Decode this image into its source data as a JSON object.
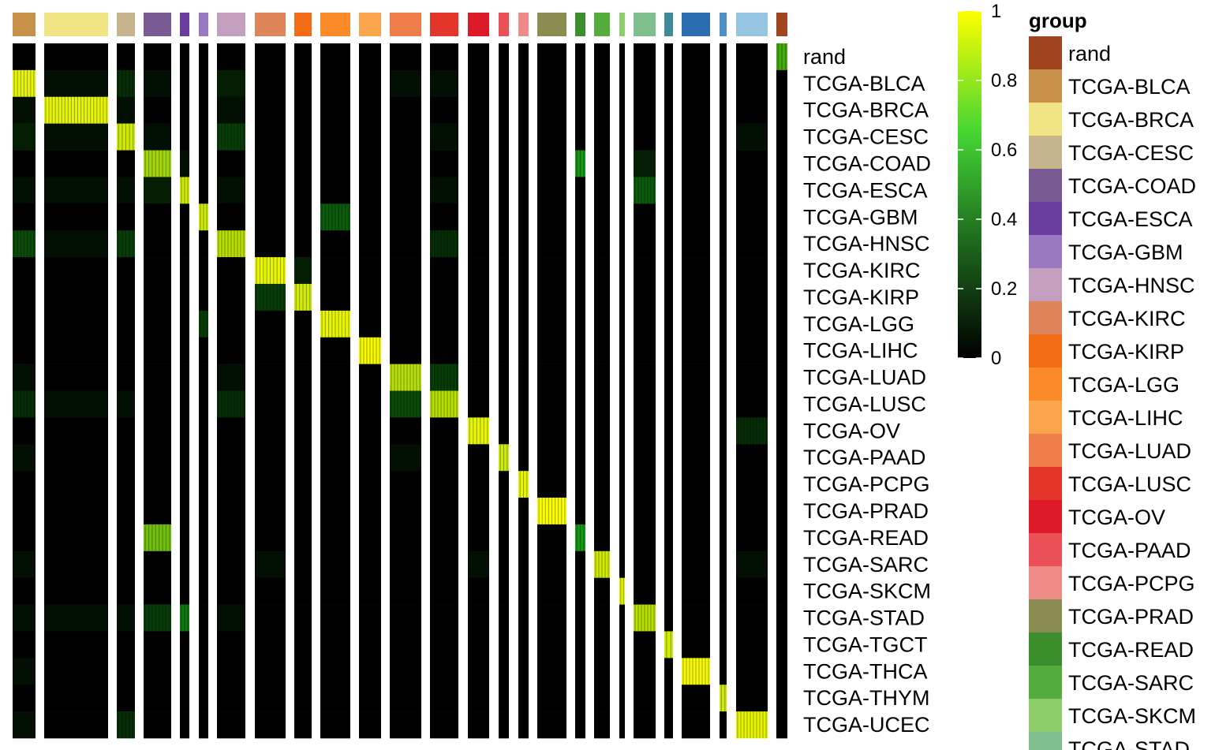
{
  "chart_data": {
    "type": "heatmap",
    "title": "",
    "xlabel": "",
    "ylabel": "",
    "rows": [
      "rand",
      "TCGA-BLCA",
      "TCGA-BRCA",
      "TCGA-CESC",
      "TCGA-COAD",
      "TCGA-ESCA",
      "TCGA-GBM",
      "TCGA-HNSC",
      "TCGA-KIRC",
      "TCGA-KIRP",
      "TCGA-LGG",
      "TCGA-LIHC",
      "TCGA-LUAD",
      "TCGA-LUSC",
      "TCGA-OV",
      "TCGA-PAAD",
      "TCGA-PCPG",
      "TCGA-PRAD",
      "TCGA-READ",
      "TCGA-SARC",
      "TCGA-SKCM",
      "TCGA-STAD",
      "TCGA-TGCT",
      "TCGA-THCA",
      "TCGA-THYM",
      "TCGA-UCEC"
    ],
    "column_groups": [
      "TCGA-BLCA",
      "TCGA-BRCA",
      "TCGA-CESC",
      "TCGA-COAD",
      "TCGA-ESCA",
      "TCGA-GBM",
      "TCGA-HNSC",
      "TCGA-KIRC",
      "TCGA-KIRP",
      "TCGA-LGG",
      "TCGA-LIHC",
      "TCGA-LUAD",
      "TCGA-LUSC",
      "TCGA-OV",
      "TCGA-PAAD",
      "TCGA-PCPG",
      "TCGA-PRAD",
      "TCGA-READ",
      "TCGA-SARC",
      "TCGA-SKCM",
      "TCGA-STAD",
      "TCGA-TGCT",
      "TCGA-THCA",
      "TCGA-THYM",
      "TCGA-UCEC",
      "rand"
    ],
    "values": [
      [
        0,
        0,
        0,
        0,
        0,
        0,
        0,
        0,
        0,
        0,
        0,
        0,
        0,
        0,
        0,
        0,
        0,
        0,
        0,
        0,
        0,
        0,
        0,
        0,
        0,
        0.6
      ],
      [
        0.95,
        0.05,
        0.15,
        0.05,
        0,
        0,
        0.1,
        0,
        0,
        0,
        0,
        0.05,
        0.05,
        0,
        0,
        0,
        0,
        0,
        0,
        0,
        0,
        0,
        0,
        0,
        0,
        0
      ],
      [
        0.05,
        0.95,
        0.05,
        0,
        0,
        0,
        0.05,
        0,
        0,
        0,
        0,
        0,
        0,
        0,
        0,
        0,
        0,
        0,
        0,
        0,
        0,
        0,
        0,
        0,
        0,
        0
      ],
      [
        0.1,
        0.05,
        0.9,
        0.05,
        0,
        0,
        0.2,
        0,
        0,
        0,
        0,
        0,
        0.05,
        0,
        0,
        0,
        0,
        0,
        0,
        0,
        0,
        0,
        0,
        0,
        0.05,
        0
      ],
      [
        0,
        0,
        0,
        0.8,
        0.05,
        0,
        0,
        0,
        0,
        0,
        0,
        0,
        0,
        0,
        0,
        0,
        0,
        0.5,
        0,
        0,
        0.1,
        0,
        0,
        0,
        0,
        0
      ],
      [
        0.05,
        0.05,
        0.05,
        0.1,
        0.9,
        0,
        0.05,
        0,
        0,
        0,
        0,
        0,
        0.05,
        0,
        0,
        0,
        0,
        0,
        0,
        0,
        0.3,
        0,
        0,
        0,
        0,
        0
      ],
      [
        0,
        0,
        0,
        0,
        0,
        0.9,
        0,
        0,
        0,
        0.3,
        0,
        0,
        0,
        0,
        0,
        0,
        0,
        0,
        0,
        0,
        0,
        0,
        0,
        0,
        0,
        0
      ],
      [
        0.25,
        0.05,
        0.2,
        0,
        0,
        0,
        0.85,
        0,
        0,
        0,
        0,
        0,
        0.15,
        0,
        0,
        0,
        0,
        0,
        0,
        0,
        0,
        0,
        0,
        0,
        0,
        0
      ],
      [
        0,
        0,
        0,
        0,
        0,
        0,
        0,
        0.95,
        0.1,
        0,
        0,
        0,
        0,
        0,
        0,
        0,
        0,
        0,
        0,
        0,
        0,
        0,
        0,
        0,
        0,
        0
      ],
      [
        0,
        0,
        0,
        0,
        0,
        0,
        0,
        0.2,
        0.9,
        0,
        0,
        0,
        0,
        0,
        0,
        0,
        0,
        0,
        0,
        0,
        0,
        0,
        0,
        0,
        0,
        0
      ],
      [
        0,
        0,
        0,
        0,
        0,
        0.2,
        0,
        0,
        0,
        0.95,
        0,
        0,
        0,
        0,
        0,
        0,
        0,
        0,
        0,
        0,
        0,
        0,
        0,
        0,
        0,
        0
      ],
      [
        0,
        0,
        0,
        0,
        0,
        0,
        0,
        0,
        0,
        0,
        0.98,
        0,
        0,
        0,
        0,
        0,
        0,
        0,
        0,
        0,
        0,
        0,
        0,
        0,
        0,
        0
      ],
      [
        0.05,
        0,
        0,
        0,
        0,
        0,
        0.05,
        0,
        0,
        0,
        0,
        0.85,
        0.2,
        0,
        0,
        0,
        0,
        0,
        0,
        0,
        0,
        0,
        0,
        0,
        0,
        0
      ],
      [
        0.15,
        0.05,
        0.05,
        0,
        0,
        0,
        0.15,
        0,
        0,
        0,
        0,
        0.25,
        0.85,
        0,
        0,
        0,
        0,
        0,
        0,
        0,
        0,
        0,
        0,
        0,
        0,
        0
      ],
      [
        0,
        0,
        0,
        0,
        0,
        0,
        0,
        0,
        0,
        0,
        0,
        0,
        0,
        0.95,
        0,
        0,
        0,
        0,
        0,
        0,
        0,
        0,
        0,
        0,
        0.15,
        0
      ],
      [
        0.05,
        0,
        0,
        0,
        0,
        0,
        0,
        0,
        0,
        0,
        0,
        0.05,
        0,
        0,
        0.9,
        0,
        0,
        0,
        0,
        0,
        0,
        0,
        0,
        0,
        0,
        0
      ],
      [
        0,
        0,
        0,
        0,
        0,
        0,
        0,
        0,
        0,
        0,
        0,
        0,
        0,
        0,
        0,
        0.95,
        0,
        0,
        0,
        0,
        0,
        0,
        0,
        0,
        0,
        0
      ],
      [
        0,
        0,
        0,
        0,
        0,
        0,
        0,
        0,
        0,
        0,
        0,
        0,
        0,
        0,
        0,
        0,
        0.99,
        0,
        0,
        0,
        0,
        0,
        0,
        0,
        0,
        0
      ],
      [
        0,
        0,
        0,
        0.7,
        0,
        0,
        0,
        0,
        0,
        0,
        0,
        0,
        0,
        0,
        0,
        0,
        0,
        0.5,
        0,
        0,
        0,
        0,
        0,
        0,
        0,
        0
      ],
      [
        0.05,
        0,
        0,
        0,
        0,
        0,
        0,
        0.05,
        0,
        0,
        0,
        0,
        0,
        0.05,
        0,
        0,
        0,
        0,
        0.9,
        0,
        0,
        0,
        0,
        0,
        0.05,
        0
      ],
      [
        0,
        0,
        0,
        0,
        0,
        0,
        0,
        0,
        0,
        0,
        0,
        0,
        0,
        0,
        0,
        0,
        0,
        0,
        0,
        0.95,
        0,
        0,
        0,
        0,
        0,
        0
      ],
      [
        0.05,
        0.05,
        0.05,
        0.2,
        0.4,
        0,
        0.05,
        0,
        0,
        0,
        0,
        0,
        0,
        0,
        0,
        0,
        0,
        0,
        0,
        0,
        0.85,
        0,
        0,
        0,
        0,
        0
      ],
      [
        0,
        0,
        0,
        0,
        0,
        0,
        0,
        0,
        0,
        0,
        0,
        0,
        0,
        0,
        0,
        0,
        0,
        0,
        0,
        0,
        0,
        0.9,
        0,
        0,
        0,
        0
      ],
      [
        0.05,
        0,
        0,
        0,
        0,
        0,
        0,
        0,
        0,
        0,
        0,
        0,
        0,
        0,
        0,
        0,
        0,
        0,
        0,
        0,
        0,
        0,
        0.98,
        0,
        0,
        0
      ],
      [
        0,
        0,
        0,
        0,
        0,
        0,
        0,
        0,
        0,
        0,
        0,
        0,
        0,
        0,
        0,
        0,
        0,
        0,
        0,
        0,
        0,
        0,
        0,
        0.9,
        0,
        0
      ],
      [
        0.05,
        0,
        0.15,
        0,
        0,
        0,
        0,
        0,
        0,
        0,
        0,
        0,
        0,
        0,
        0,
        0,
        0,
        0,
        0,
        0,
        0,
        0,
        0,
        0,
        0.95,
        0
      ]
    ],
    "color_scale": {
      "ticks": [
        "0",
        "0.2",
        "0.4",
        "0.6",
        "0.8",
        "1"
      ],
      "low": "#000000",
      "mid": "#33cc33",
      "high": "#ffff00"
    },
    "legend": {
      "title": "group",
      "placement": "right",
      "entries": [
        {
          "label": "rand",
          "color": "#A0451F"
        },
        {
          "label": "TCGA-BLCA",
          "color": "#C8914A"
        },
        {
          "label": "TCGA-BRCA",
          "color": "#F0E484"
        },
        {
          "label": "TCGA-CESC",
          "color": "#C5B48C"
        },
        {
          "label": "TCGA-COAD",
          "color": "#7A5A92"
        },
        {
          "label": "TCGA-ESCA",
          "color": "#6A3E9E"
        },
        {
          "label": "TCGA-GBM",
          "color": "#9B79C0"
        },
        {
          "label": "TCGA-HNSC",
          "color": "#C49EBE"
        },
        {
          "label": "TCGA-KIRC",
          "color": "#DE855A"
        },
        {
          "label": "TCGA-KIRP",
          "color": "#F26B15"
        },
        {
          "label": "TCGA-LGG",
          "color": "#FB8A28"
        },
        {
          "label": "TCGA-LIHC",
          "color": "#FBA54C"
        },
        {
          "label": "TCGA-LUAD",
          "color": "#F07E4A"
        },
        {
          "label": "TCGA-LUSC",
          "color": "#E3352A"
        },
        {
          "label": "TCGA-OV",
          "color": "#DD1A28"
        },
        {
          "label": "TCGA-PAAD",
          "color": "#EA5056"
        },
        {
          "label": "TCGA-PCPG",
          "color": "#EE8A87"
        },
        {
          "label": "TCGA-PRAD",
          "color": "#8A8C52"
        },
        {
          "label": "TCGA-READ",
          "color": "#3C8E2C"
        },
        {
          "label": "TCGA-SARC",
          "color": "#55AD3D"
        },
        {
          "label": "TCGA-SKCM",
          "color": "#8DCD6A"
        },
        {
          "label": "TCGA-STAD",
          "color": "#7FBF8D"
        }
      ]
    }
  }
}
